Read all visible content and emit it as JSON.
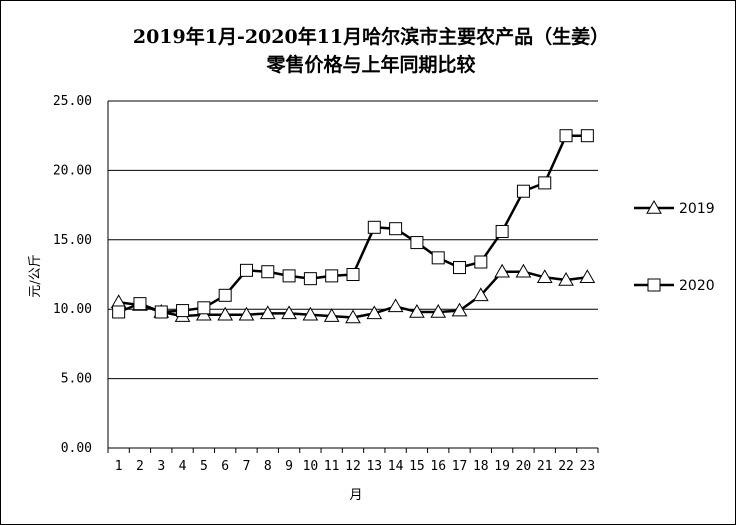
{
  "chart_data": {
    "type": "line",
    "title": "2019年1月-2020年11月哈尔滨市主要农产品（生姜）",
    "subtitle": "零售价格与上年同期比较",
    "xlabel": "月",
    "ylabel": "元/公斤",
    "ylim": [
      0,
      25
    ],
    "yticks": [
      "0.00",
      "5.00",
      "10.00",
      "15.00",
      "20.00",
      "25.00"
    ],
    "categories": [
      "1",
      "2",
      "3",
      "4",
      "5",
      "6",
      "7",
      "8",
      "9",
      "10",
      "11",
      "12",
      "13",
      "14",
      "15",
      "16",
      "17",
      "18",
      "19",
      "20",
      "21",
      "22",
      "23"
    ],
    "grid": true,
    "legend_position": "right",
    "series": [
      {
        "name": "2019",
        "marker": "triangle",
        "values": [
          10.5,
          10.3,
          9.8,
          9.5,
          9.6,
          9.6,
          9.6,
          9.7,
          9.7,
          9.6,
          9.5,
          9.4,
          9.7,
          10.2,
          9.8,
          9.8,
          9.9,
          11.0,
          12.7,
          12.7,
          12.3,
          12.1,
          12.3
        ]
      },
      {
        "name": "2020",
        "marker": "square",
        "values": [
          9.8,
          10.4,
          9.8,
          9.9,
          10.1,
          11.0,
          12.8,
          12.7,
          12.4,
          12.2,
          12.4,
          12.5,
          15.9,
          15.8,
          14.8,
          13.7,
          13.0,
          13.4,
          15.6,
          18.5,
          19.1,
          22.5,
          22.5
        ]
      }
    ]
  }
}
